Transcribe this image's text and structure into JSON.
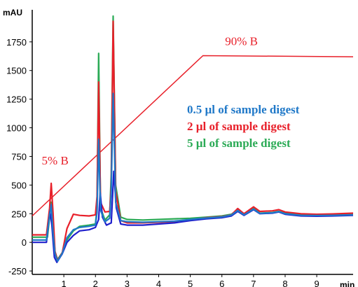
{
  "chart_data": {
    "type": "line",
    "ylabel": "mAU",
    "xlabel": "min",
    "xlim": [
      0,
      10.15
    ],
    "ylim": [
      -280,
      2030
    ],
    "x_ticks": [
      1,
      2,
      3,
      4,
      5,
      6,
      7,
      8,
      9
    ],
    "x_tick_labels": [
      "1",
      "2",
      "3",
      "4",
      "5",
      "6",
      "7",
      "8",
      "9"
    ],
    "y_ticks": [
      -250,
      0,
      250,
      500,
      750,
      1000,
      1250,
      1500,
      1750
    ],
    "y_tick_labels": [
      "-250",
      "0",
      "250",
      "500",
      "750",
      "1000",
      "1250",
      "1500",
      "1750"
    ],
    "grid": false,
    "legend": {
      "placement": "right-middle",
      "entries": [
        {
          "label": "0.5 µl of sample digest",
          "color": "#1f78c8"
        },
        {
          "label": "2 µl of sample digest",
          "color": "#e8202a"
        },
        {
          "label": "5 µl of sample digest",
          "color": "#2aaa55"
        }
      ]
    },
    "gradient": {
      "color": "#e8202a",
      "points": [
        [
          0,
          230
        ],
        [
          5.4,
          1630
        ],
        [
          10.15,
          1620
        ]
      ],
      "annotations": [
        {
          "text": "5% B",
          "x": 0.3,
          "y": 680
        },
        {
          "text": "90% B",
          "x": 6.1,
          "y": 1720
        }
      ]
    },
    "series": [
      {
        "color": "#2aaa55",
        "points": [
          [
            0,
            45
          ],
          [
            0.48,
            45
          ],
          [
            0.56,
            250
          ],
          [
            0.6,
            350
          ],
          [
            0.66,
            120
          ],
          [
            0.72,
            -80
          ],
          [
            0.8,
            -150
          ],
          [
            0.95,
            -90
          ],
          [
            1.1,
            20
          ],
          [
            1.3,
            100
          ],
          [
            1.5,
            140
          ],
          [
            1.8,
            150
          ],
          [
            2.0,
            160
          ],
          [
            2.05,
            300
          ],
          [
            2.1,
            1650
          ],
          [
            2.16,
            300
          ],
          [
            2.3,
            195
          ],
          [
            2.45,
            240
          ],
          [
            2.5,
            600
          ],
          [
            2.56,
            1975
          ],
          [
            2.64,
            500
          ],
          [
            2.8,
            220
          ],
          [
            3.0,
            200
          ],
          [
            3.5,
            195
          ],
          [
            4.0,
            200
          ],
          [
            4.5,
            205
          ],
          [
            5.0,
            210
          ],
          [
            5.5,
            220
          ],
          [
            6.0,
            230
          ],
          [
            6.3,
            245
          ],
          [
            6.5,
            285
          ],
          [
            6.7,
            245
          ],
          [
            7.0,
            295
          ],
          [
            7.2,
            255
          ],
          [
            7.6,
            260
          ],
          [
            7.8,
            270
          ],
          [
            8.0,
            255
          ],
          [
            8.5,
            240
          ],
          [
            9.0,
            240
          ],
          [
            9.5,
            242
          ],
          [
            10.15,
            245
          ]
        ]
      },
      {
        "color": "#e8202a",
        "points": [
          [
            0,
            65
          ],
          [
            0.45,
            65
          ],
          [
            0.55,
            300
          ],
          [
            0.6,
            515
          ],
          [
            0.66,
            250
          ],
          [
            0.72,
            -80
          ],
          [
            0.8,
            -160
          ],
          [
            0.95,
            -90
          ],
          [
            1.1,
            120
          ],
          [
            1.3,
            245
          ],
          [
            1.5,
            235
          ],
          [
            1.8,
            230
          ],
          [
            2.0,
            240
          ],
          [
            2.05,
            400
          ],
          [
            2.1,
            1400
          ],
          [
            2.16,
            350
          ],
          [
            2.3,
            265
          ],
          [
            2.45,
            270
          ],
          [
            2.5,
            500
          ],
          [
            2.56,
            1930
          ],
          [
            2.64,
            450
          ],
          [
            2.8,
            190
          ],
          [
            3.0,
            170
          ],
          [
            3.5,
            170
          ],
          [
            4.0,
            175
          ],
          [
            4.5,
            180
          ],
          [
            5.0,
            195
          ],
          [
            5.5,
            215
          ],
          [
            6.0,
            225
          ],
          [
            6.3,
            240
          ],
          [
            6.5,
            295
          ],
          [
            6.7,
            250
          ],
          [
            7.0,
            310
          ],
          [
            7.2,
            270
          ],
          [
            7.6,
            275
          ],
          [
            7.8,
            285
          ],
          [
            8.0,
            265
          ],
          [
            8.5,
            250
          ],
          [
            9.0,
            245
          ],
          [
            9.5,
            248
          ],
          [
            10.15,
            255
          ]
        ]
      },
      {
        "color": "#1f1fcc",
        "points": [
          [
            0,
            0
          ],
          [
            0.45,
            0
          ],
          [
            0.56,
            270
          ],
          [
            0.62,
            150
          ],
          [
            0.7,
            -130
          ],
          [
            0.78,
            -175
          ],
          [
            0.95,
            -100
          ],
          [
            1.1,
            0
          ],
          [
            1.3,
            60
          ],
          [
            1.5,
            100
          ],
          [
            1.8,
            110
          ],
          [
            2.0,
            130
          ],
          [
            2.1,
            200
          ],
          [
            2.15,
            435
          ],
          [
            2.22,
            220
          ],
          [
            2.35,
            150
          ],
          [
            2.5,
            170
          ],
          [
            2.58,
            620
          ],
          [
            2.66,
            300
          ],
          [
            2.8,
            160
          ],
          [
            3.0,
            150
          ],
          [
            3.5,
            150
          ],
          [
            4.0,
            160
          ],
          [
            4.5,
            170
          ],
          [
            5.0,
            190
          ],
          [
            5.5,
            205
          ],
          [
            6.0,
            215
          ],
          [
            6.3,
            230
          ],
          [
            6.5,
            270
          ],
          [
            6.7,
            235
          ],
          [
            7.0,
            285
          ],
          [
            7.2,
            250
          ],
          [
            7.6,
            255
          ],
          [
            7.8,
            265
          ],
          [
            8.0,
            245
          ],
          [
            8.5,
            230
          ],
          [
            9.0,
            228
          ],
          [
            9.5,
            230
          ],
          [
            10.15,
            235
          ]
        ]
      },
      {
        "color": "#1f78c8",
        "points": [
          [
            0,
            20
          ],
          [
            0.45,
            20
          ],
          [
            0.55,
            240
          ],
          [
            0.6,
            330
          ],
          [
            0.66,
            80
          ],
          [
            0.72,
            -100
          ],
          [
            0.8,
            -165
          ],
          [
            0.95,
            -95
          ],
          [
            1.1,
            40
          ],
          [
            1.3,
            110
          ],
          [
            1.5,
            130
          ],
          [
            1.8,
            140
          ],
          [
            2.0,
            150
          ],
          [
            2.05,
            260
          ],
          [
            2.1,
            900
          ],
          [
            2.16,
            280
          ],
          [
            2.3,
            180
          ],
          [
            2.45,
            210
          ],
          [
            2.5,
            450
          ],
          [
            2.56,
            1300
          ],
          [
            2.64,
            350
          ],
          [
            2.8,
            190
          ],
          [
            3.0,
            180
          ],
          [
            3.5,
            175
          ],
          [
            4.0,
            180
          ],
          [
            4.5,
            185
          ],
          [
            5.0,
            200
          ],
          [
            5.5,
            212
          ],
          [
            6.0,
            222
          ],
          [
            6.3,
            238
          ],
          [
            6.5,
            278
          ],
          [
            6.7,
            240
          ],
          [
            7.0,
            290
          ],
          [
            7.2,
            252
          ],
          [
            7.6,
            258
          ],
          [
            7.8,
            268
          ],
          [
            8.0,
            250
          ],
          [
            8.5,
            236
          ],
          [
            9.0,
            234
          ],
          [
            9.5,
            236
          ],
          [
            10.15,
            240
          ]
        ]
      }
    ]
  }
}
